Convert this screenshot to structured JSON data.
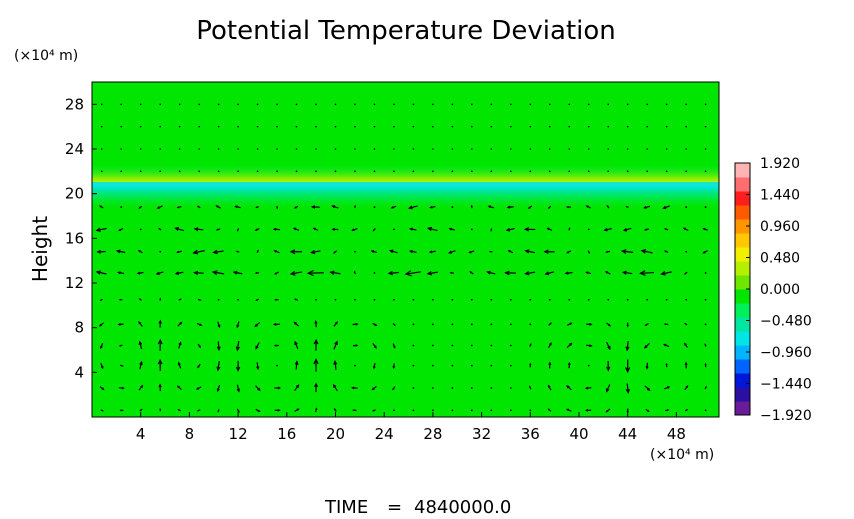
{
  "chart_data": {
    "type": "heatmap",
    "title": "Potential Temperature Deviation",
    "ylabel": "Height",
    "xunit": "(×10⁴ m)",
    "yunit": "(×10⁴ m)",
    "xlim": [
      0,
      51.5
    ],
    "ylim": [
      0,
      30
    ],
    "x_ticks": [
      4,
      8,
      12,
      16,
      20,
      24,
      28,
      32,
      36,
      40,
      44,
      48
    ],
    "y_ticks": [
      4,
      8,
      12,
      16,
      20,
      24,
      28
    ],
    "background_value": 0.0,
    "inversion_layer": {
      "y_center": 20.7,
      "min_value": -0.7,
      "max_value": 0.5
    },
    "colorbar": {
      "ticks": [
        {
          "value": 1.92,
          "label": "1.920"
        },
        {
          "value": 1.44,
          "label": "1.440"
        },
        {
          "value": 0.96,
          "label": "0.960"
        },
        {
          "value": 0.48,
          "label": "0.480"
        },
        {
          "value": 0.0,
          "label": "0.000"
        },
        {
          "value": -0.48,
          "label": "−0.480"
        },
        {
          "value": -0.96,
          "label": "−0.960"
        },
        {
          "value": -1.44,
          "label": "−1.440"
        },
        {
          "value": -1.92,
          "label": "−1.920"
        }
      ],
      "colors": [
        "#6a1b9a",
        "#2a0fa0",
        "#0016d8",
        "#0064ff",
        "#00b4ff",
        "#00e6e6",
        "#00e6a0",
        "#00f05a",
        "#00e600",
        "#6ee600",
        "#b4f000",
        "#f0f000",
        "#ffc800",
        "#ff9600",
        "#ff5a00",
        "#ff1e1e",
        "#ff6e6e",
        "#ffb4b4"
      ]
    },
    "vector_field": {
      "rows_y": [
        0.6,
        2.6,
        4.6,
        6.4,
        8.3,
        10.5,
        12.9,
        14.8,
        16.8,
        18.8
      ],
      "x_spacing": 1.6,
      "cells": [
        {
          "x": 3.5,
          "y": 5.5,
          "r": 3.8,
          "sense": 1
        },
        {
          "x": 7.5,
          "y": 5.5,
          "r": 3.8,
          "sense": -1
        },
        {
          "x": 15.5,
          "y": 5.0,
          "r": 4.2,
          "sense": 1
        },
        {
          "x": 21.0,
          "y": 5.0,
          "r": 3.5,
          "sense": -1
        },
        {
          "x": 41.0,
          "y": 4.5,
          "r": 3.8,
          "sense": -1
        },
        {
          "x": 46.0,
          "y": 4.5,
          "r": 3.2,
          "sense": 1
        }
      ],
      "upper_flow": [
        {
          "y": 12.9,
          "u": -1.4
        },
        {
          "y": 14.8,
          "u": -1.0
        },
        {
          "y": 16.8,
          "u": -0.8
        },
        {
          "y": 18.8,
          "u": -0.6
        }
      ]
    }
  },
  "footer": {
    "time_label": "TIME",
    "equals": "=",
    "time_value": "4840000.0"
  }
}
